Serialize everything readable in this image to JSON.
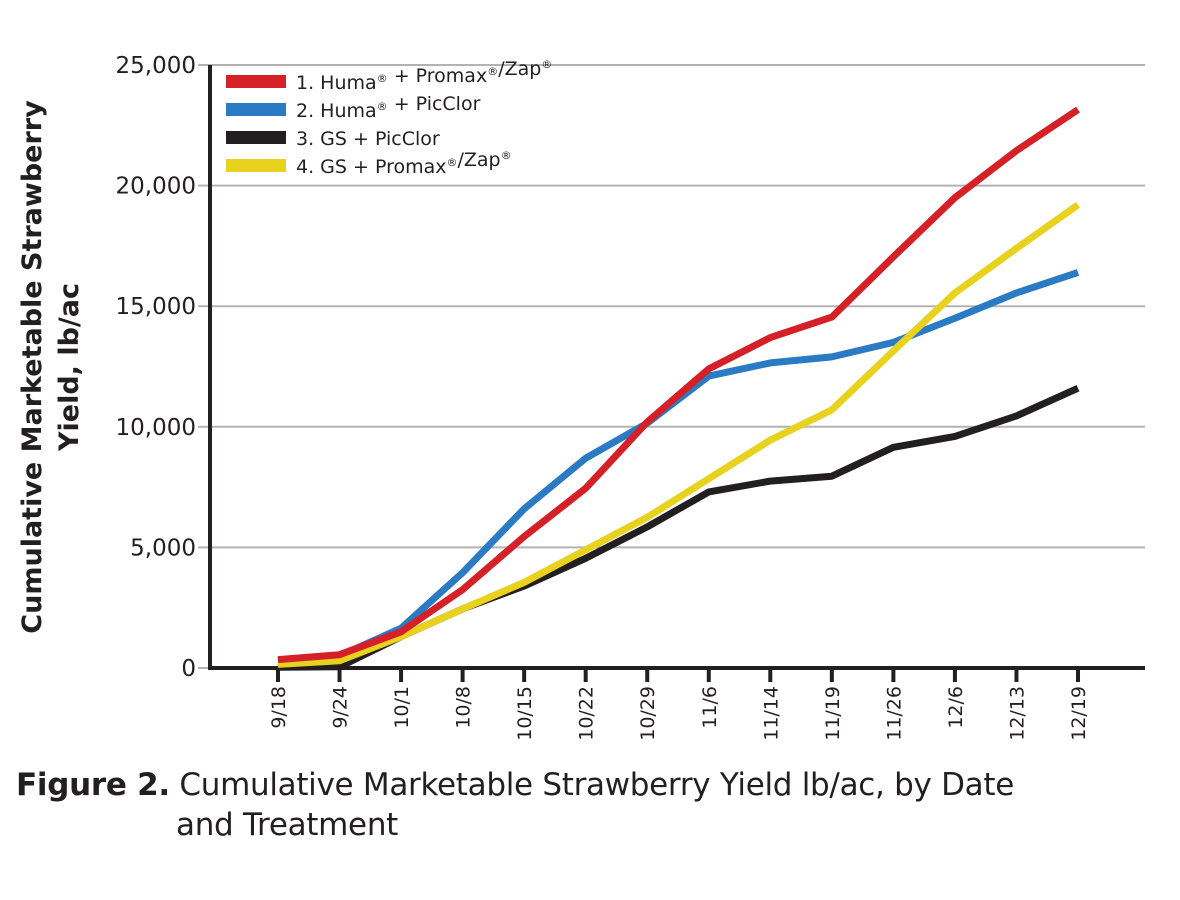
{
  "chart_data": {
    "type": "line",
    "title": "",
    "ylabel_lines": [
      "Cumulative Marketable Strawberry",
      "Yield, lb/ac"
    ],
    "xlabel": "",
    "ylim": [
      0,
      25000
    ],
    "yticks": [
      0,
      5000,
      10000,
      15000,
      20000,
      25000
    ],
    "ytick_labels": [
      "0",
      "5,000",
      "10,000",
      "15,000",
      "20,000",
      "25,000"
    ],
    "grid": "horizontal",
    "legend_position": "top-left",
    "categories": [
      "9/18",
      "9/24",
      "10/1",
      "10/8",
      "10/15",
      "10/22",
      "10/29",
      "11/6",
      "11/14",
      "11/19",
      "11/26",
      "12/6",
      "12/13",
      "12/19"
    ],
    "series": [
      {
        "name": "1. Huma® + Promax®/Zap®",
        "color": "#d52027",
        "values": [
          350,
          550,
          1500,
          3250,
          5450,
          7450,
          10200,
          12400,
          13700,
          14550,
          17050,
          19500,
          21450,
          23150
        ]
      },
      {
        "name": "2. Huma® + PicClor",
        "color": "#2b7bc4",
        "values": [
          300,
          500,
          1650,
          3950,
          6600,
          8700,
          10150,
          12100,
          12650,
          12900,
          13500,
          14500,
          15550,
          16400
        ]
      },
      {
        "name": "3. GS + PicClor",
        "color": "#231f20",
        "values": [
          30,
          50,
          1300,
          2450,
          3400,
          4550,
          5850,
          7300,
          7750,
          7950,
          9150,
          9600,
          10450,
          11600
        ]
      },
      {
        "name": "4. GS + Promax®/Zap®",
        "color": "#e8d21d",
        "values": [
          150,
          300,
          1300,
          2450,
          3550,
          4900,
          6250,
          7850,
          9450,
          10700,
          13150,
          15550,
          17400,
          19200
        ]
      }
    ]
  },
  "caption": {
    "figure_number": "Figure 2.",
    "text_line1": " Cumulative Marketable Strawberry Yield lb/ac, by Date",
    "text_line2": "and Treatment"
  }
}
